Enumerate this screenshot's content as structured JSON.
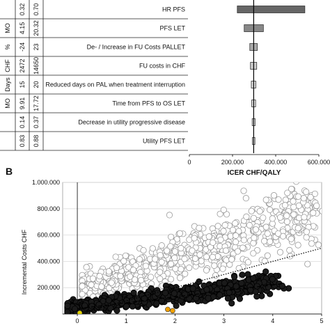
{
  "chart_data": [
    {
      "type": "bar",
      "subtype": "tornado",
      "panel": "",
      "xlabel": "ICER CHF/QALY",
      "xlim": [
        0,
        600000
      ],
      "xticks": [
        "0",
        "200.000",
        "400.000",
        "600.000"
      ],
      "xtick_values": [
        0,
        200000,
        400000,
        600000
      ],
      "base_value": 298000,
      "table_header": [
        "",
        "",
        ""
      ],
      "rows": [
        {
          "label": "HR PFS",
          "unit": "",
          "low_input": "0.32",
          "high_input": "0.70",
          "range": [
            222000,
            535000
          ],
          "color": "#666666"
        },
        {
          "label": "PFS LET",
          "unit": "MO",
          "low_input": "4.15",
          "high_input": "20.32",
          "range": [
            254000,
            343000
          ],
          "color": "#888888"
        },
        {
          "label": "De- / Increase in FU Costs PALLET",
          "unit": "%",
          "low_input": "-24",
          "high_input": "23",
          "range": [
            280000,
            315000
          ],
          "color": "#aaaaaa"
        },
        {
          "label": "FU costs in CHF",
          "unit": "CHF",
          "low_input": "2472",
          "high_input": "14650",
          "range": [
            283000,
            312000
          ],
          "color": "#cccccc"
        },
        {
          "label": "Reduced days on PAL when treatment interruption",
          "unit": "Days",
          "low_input": "15",
          "high_input": "20",
          "range": [
            287000,
            308000
          ],
          "color": "#dddddd"
        },
        {
          "label": "Time from PFS to OS LET",
          "unit": "MO",
          "low_input": "9.91",
          "high_input": "17.72",
          "range": [
            289000,
            307000
          ],
          "color": "#e0e0e0"
        },
        {
          "label": "Decrease in utility progressive disease",
          "unit": "",
          "low_input": "0.14",
          "high_input": "0.37",
          "range": [
            291000,
            305000
          ],
          "color": "#e6e6e6"
        },
        {
          "label": "Utility PFS LET",
          "unit": "",
          "low_input": "0.83",
          "high_input": "0.88",
          "range": [
            292000,
            304000
          ],
          "color": "#eeeeee"
        }
      ]
    },
    {
      "type": "scatter",
      "panel": "B",
      "ylabel": "Incremental Costs CHF",
      "xlabel": "",
      "xlim": [
        -0.3,
        5
      ],
      "ylim": [
        0,
        1000000
      ],
      "xticks": [
        "0",
        "1",
        "2",
        "3",
        "4",
        "5"
      ],
      "xtick_values": [
        0,
        1,
        2,
        3,
        4,
        5
      ],
      "yticks": [
        "200.000",
        "400.000",
        "600.000",
        "800.000",
        "1.000.000"
      ],
      "ytick_values": [
        200000,
        400000,
        600000,
        800000,
        1000000
      ],
      "gridlines": true,
      "series": [
        {
          "marker": "open-circle",
          "fill": "#ffffff",
          "stroke": "#999999",
          "n_points": 700,
          "x_range": [
            0.1,
            4.9
          ],
          "slope": 125000,
          "intercept": 170000,
          "spread": 110000
        },
        {
          "marker": "filled-circle",
          "fill": "#1a1a1a",
          "stroke": "#000000",
          "n_points": 900,
          "x_range": [
            -0.2,
            4.1
          ],
          "slope": 45000,
          "intercept": 55000,
          "spread": 35000
        }
      ],
      "highlight_points": [
        {
          "x": 1.85,
          "y": 35000,
          "color": "#f0a000"
        },
        {
          "x": 1.95,
          "y": 25000,
          "color": "#f0a000"
        },
        {
          "x": 0.05,
          "y": 8000,
          "color": "#e0d000"
        }
      ],
      "reference_lines": [
        {
          "style": "dotted",
          "from": [
            0,
            0
          ],
          "to": [
            5,
            500000
          ]
        },
        {
          "style": "dashed",
          "from": [
            0,
            40000
          ],
          "to": [
            4.2,
            230000
          ]
        }
      ]
    }
  ]
}
